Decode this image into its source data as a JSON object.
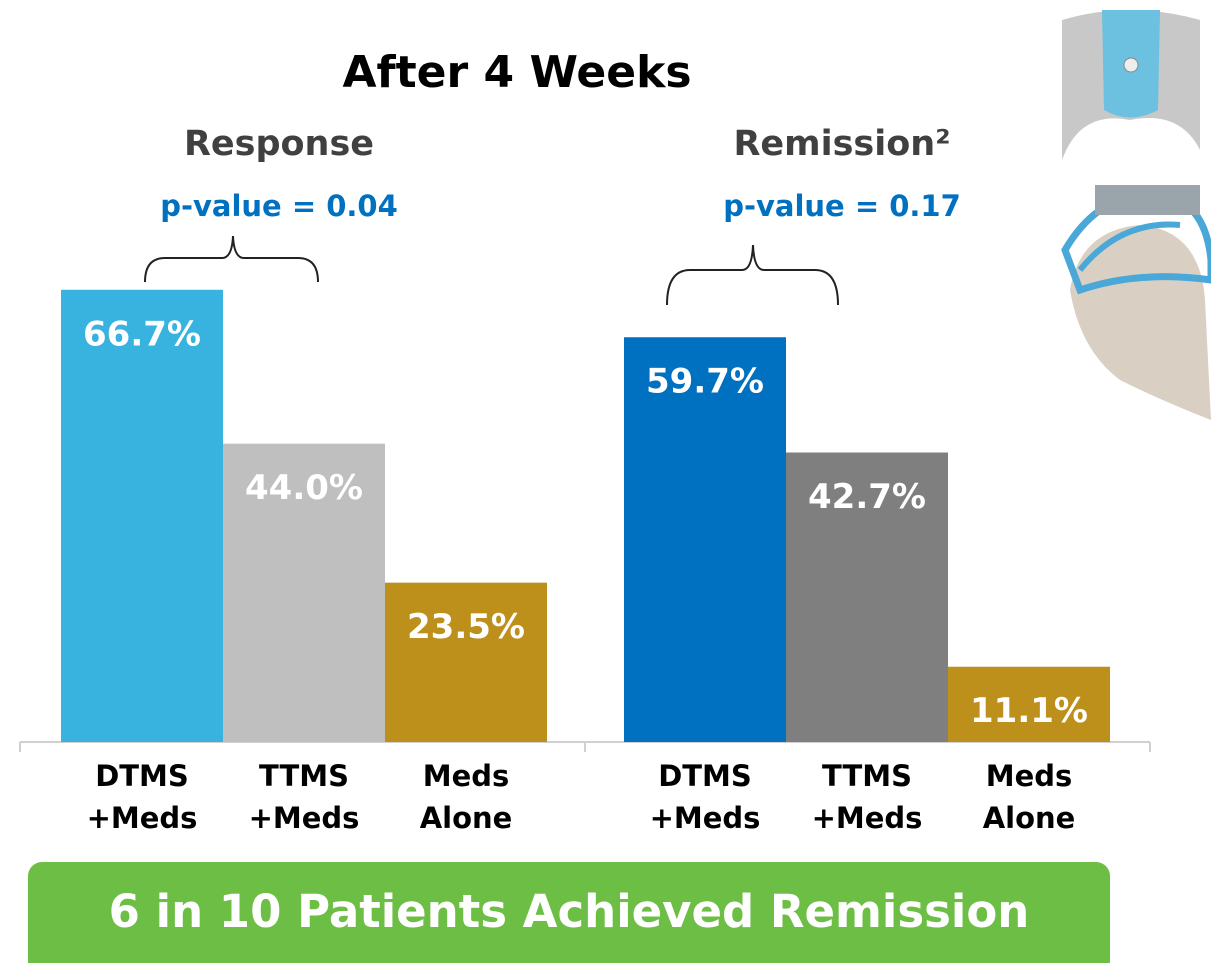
{
  "title": "After 4 Weeks",
  "banner": "6 in 10 Patients Achieved Remission",
  "chart_data": [
    {
      "type": "bar",
      "title": "Response",
      "subtitle": "p-value = 0.04",
      "categories": [
        "DTMS +Meds",
        "TTMS +Meds",
        "Meds Alone"
      ],
      "values": [
        66.7,
        44.0,
        23.5
      ],
      "value_labels": [
        "66.7%",
        "44.0%",
        "23.5%"
      ],
      "colors": [
        "#38b3e0",
        "#bfbfbf",
        "#bd8f1b"
      ]
    },
    {
      "type": "bar",
      "title": "Remission²",
      "subtitle": "p-value = 0.17",
      "categories": [
        "DTMS +Meds",
        "TTMS +Meds",
        "Meds Alone"
      ],
      "values": [
        59.7,
        42.7,
        11.1
      ],
      "value_labels": [
        "59.7%",
        "42.7%",
        "11.1%"
      ],
      "colors": [
        "#0070c0",
        "#7f7f7f",
        "#bd8f1b"
      ]
    }
  ]
}
